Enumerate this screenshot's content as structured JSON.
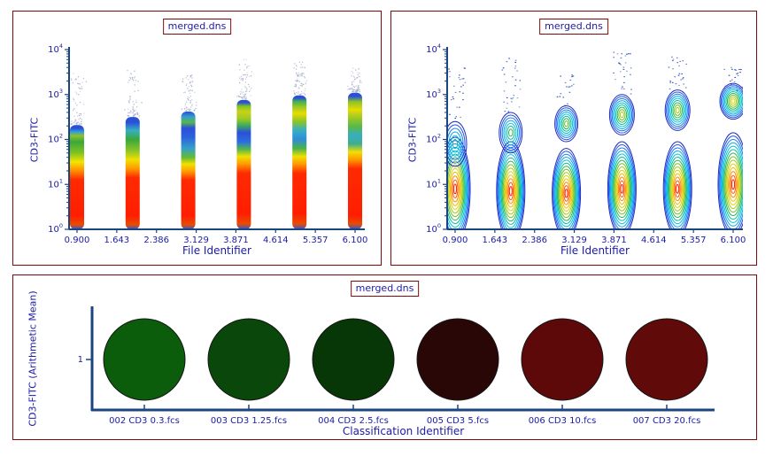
{
  "window": {
    "background": "#ffffff"
  },
  "colors": {
    "panel_border": "#7d0b0b",
    "title_border": "#7d0b0b",
    "text": "#1b1ba6",
    "axis": "#1a4580",
    "speckle": "#9aa2c4",
    "contour_speck": "#1b3fae",
    "bubble_outline": "#151515"
  },
  "chart_data": [
    {
      "id": "density",
      "type": "pseudocolor-density",
      "title": "merged.dns",
      "xlabel": "File Identifier",
      "ylabel": "CD3-FITC",
      "x_scale": "linear",
      "y_scale": "log",
      "xlim": [
        0.9,
        6.1
      ],
      "ylim_log": [
        0,
        4
      ],
      "x_ticks": [
        0.9,
        1.643,
        2.386,
        3.129,
        3.871,
        4.614,
        5.357,
        6.1
      ],
      "x_tick_labels": [
        "0.900",
        "1.643",
        "2.386",
        "3.129",
        "3.871",
        "4.614",
        "5.357",
        "6.100"
      ],
      "y_decades": [
        0,
        1,
        2,
        3,
        4
      ],
      "grid": false,
      "bars": [
        {
          "x": 0.9,
          "width": 16,
          "top_log": 2.32,
          "speck_hi": 3.55,
          "stops": [
            [
              0.0,
              "#2f55e0"
            ],
            [
              0.1,
              "#e84d00"
            ],
            [
              0.3,
              "#ff1e00"
            ],
            [
              1.1,
              "#ff2a00"
            ],
            [
              1.3,
              "#ff8c00"
            ],
            [
              1.5,
              "#f5e400"
            ],
            [
              1.7,
              "#7fc322"
            ],
            [
              1.95,
              "#3aa83a"
            ],
            [
              2.08,
              "#8fc32a"
            ],
            [
              2.17,
              "#2fa0d8"
            ],
            [
              2.25,
              "#2b50d8"
            ],
            [
              2.32,
              "#2b50d8"
            ]
          ]
        },
        {
          "x": 1.94,
          "width": 16,
          "top_log": 2.5,
          "speck_hi": 3.55,
          "stops": [
            [
              0.0,
              "#2f55e0"
            ],
            [
              0.1,
              "#e84d00"
            ],
            [
              0.3,
              "#ff1e00"
            ],
            [
              1.15,
              "#ff2a00"
            ],
            [
              1.35,
              "#ff9800"
            ],
            [
              1.55,
              "#f0e000"
            ],
            [
              1.75,
              "#8cc428"
            ],
            [
              2.0,
              "#3aa83a"
            ],
            [
              2.2,
              "#35b0c0"
            ],
            [
              2.38,
              "#2b50d8"
            ],
            [
              2.5,
              "#2b50d8"
            ]
          ]
        },
        {
          "x": 2.98,
          "width": 16,
          "top_log": 2.62,
          "speck_hi": 3.45,
          "stops": [
            [
              0.0,
              "#2f55e0"
            ],
            [
              0.1,
              "#e84d00"
            ],
            [
              0.3,
              "#ff1e00"
            ],
            [
              1.1,
              "#ff2a00"
            ],
            [
              1.3,
              "#ffa000"
            ],
            [
              1.45,
              "#f0e000"
            ],
            [
              1.6,
              "#63bb35"
            ],
            [
              1.8,
              "#35a0c8"
            ],
            [
              2.05,
              "#2b62dc"
            ],
            [
              2.25,
              "#2b50d8"
            ],
            [
              2.38,
              "#55b84a"
            ],
            [
              2.5,
              "#35a0c8"
            ],
            [
              2.62,
              "#2b50d8"
            ]
          ]
        },
        {
          "x": 4.02,
          "width": 16,
          "top_log": 2.88,
          "speck_hi": 3.8,
          "stops": [
            [
              0.0,
              "#2f55e0"
            ],
            [
              0.12,
              "#e84d00"
            ],
            [
              0.35,
              "#ff1e00"
            ],
            [
              1.25,
              "#ff2a00"
            ],
            [
              1.45,
              "#ff9800"
            ],
            [
              1.62,
              "#f0e000"
            ],
            [
              1.78,
              "#55b84a"
            ],
            [
              1.95,
              "#2b6ce0"
            ],
            [
              2.15,
              "#2b50d8"
            ],
            [
              2.32,
              "#3fae56"
            ],
            [
              2.45,
              "#9cc824"
            ],
            [
              2.62,
              "#c8d416"
            ],
            [
              2.74,
              "#7fc322"
            ],
            [
              2.82,
              "#2b50d8"
            ],
            [
              2.88,
              "#2b50d8"
            ]
          ]
        },
        {
          "x": 5.06,
          "width": 16,
          "top_log": 2.98,
          "speck_hi": 3.75,
          "stops": [
            [
              0.0,
              "#2f55e0"
            ],
            [
              0.12,
              "#e84d00"
            ],
            [
              0.35,
              "#ff1e00"
            ],
            [
              1.25,
              "#ff2a00"
            ],
            [
              1.45,
              "#ff9800"
            ],
            [
              1.62,
              "#f0e000"
            ],
            [
              1.8,
              "#4ab24a"
            ],
            [
              2.0,
              "#2f8cd8"
            ],
            [
              2.2,
              "#35aec6"
            ],
            [
              2.4,
              "#8cc428"
            ],
            [
              2.58,
              "#e8dc00"
            ],
            [
              2.72,
              "#9cc824"
            ],
            [
              2.85,
              "#3fae56"
            ],
            [
              2.92,
              "#2b50d8"
            ],
            [
              2.98,
              "#2b50d8"
            ]
          ]
        },
        {
          "x": 6.1,
          "width": 16,
          "top_log": 3.04,
          "speck_hi": 3.6,
          "stops": [
            [
              0.0,
              "#2f55e0"
            ],
            [
              0.12,
              "#e84d00"
            ],
            [
              0.3,
              "#ff1e00"
            ],
            [
              1.35,
              "#ff2a00"
            ],
            [
              1.55,
              "#ff9800"
            ],
            [
              1.72,
              "#f0e000"
            ],
            [
              1.9,
              "#3fae8c"
            ],
            [
              2.08,
              "#35aec6"
            ],
            [
              2.28,
              "#55b84a"
            ],
            [
              2.48,
              "#9cc824"
            ],
            [
              2.66,
              "#e8dc00"
            ],
            [
              2.84,
              "#8cc428"
            ],
            [
              2.96,
              "#2b50d8"
            ],
            [
              3.04,
              "#2b50d8"
            ]
          ]
        }
      ]
    },
    {
      "id": "contour",
      "type": "contour",
      "title": "merged.dns",
      "xlabel": "File Identifier",
      "ylabel": "CD3-FITC",
      "x_scale": "linear",
      "y_scale": "log",
      "xlim": [
        0.9,
        6.1
      ],
      "ylim_log": [
        0,
        4
      ],
      "x_ticks": [
        0.9,
        1.643,
        2.386,
        3.129,
        3.871,
        4.614,
        5.357,
        6.1
      ],
      "x_tick_labels": [
        "0.900",
        "1.643",
        "2.386",
        "3.129",
        "3.871",
        "4.614",
        "5.357",
        "6.100"
      ],
      "y_decades": [
        0,
        1,
        2,
        3,
        4
      ],
      "grid": false,
      "palette": [
        "#1f2fbf",
        "#2452e8",
        "#1b7cf2",
        "#08a8f0",
        "#00c4d8",
        "#00bfa0",
        "#2eb44e",
        "#6cc22a",
        "#a8cc14",
        "#d8d400",
        "#f2b800",
        "#ff8800",
        "#ff5100",
        "#ff2000"
      ],
      "samples": [
        {
          "x": 0.9,
          "lower": {
            "cy": 0.9,
            "ry": 1.15,
            "rx": 17,
            "depth": 14
          },
          "upper": {
            "cy": 1.9,
            "ry": 0.5,
            "rx": 13,
            "depth": 6
          },
          "specks": {
            "lo": 2.45,
            "hi": 3.7,
            "n": 30
          }
        },
        {
          "x": 1.94,
          "lower": {
            "cy": 0.85,
            "ry": 1.1,
            "rx": 16,
            "depth": 14
          },
          "upper": {
            "cy": 2.15,
            "ry": 0.45,
            "rx": 13,
            "depth": 7
          },
          "specks": {
            "lo": 2.6,
            "hi": 3.85,
            "n": 30
          }
        },
        {
          "x": 2.98,
          "lower": {
            "cy": 0.8,
            "ry": 1.0,
            "rx": 16,
            "depth": 14
          },
          "upper": {
            "cy": 2.35,
            "ry": 0.4,
            "rx": 13,
            "depth": 8
          },
          "specks": {
            "lo": 2.75,
            "hi": 3.45,
            "n": 18
          }
        },
        {
          "x": 4.02,
          "lower": {
            "cy": 0.9,
            "ry": 1.05,
            "rx": 16,
            "depth": 14
          },
          "upper": {
            "cy": 2.55,
            "ry": 0.45,
            "rx": 14,
            "depth": 9
          },
          "specks": {
            "lo": 3.0,
            "hi": 3.95,
            "n": 28
          }
        },
        {
          "x": 5.06,
          "lower": {
            "cy": 0.9,
            "ry": 1.05,
            "rx": 16,
            "depth": 14
          },
          "upper": {
            "cy": 2.65,
            "ry": 0.45,
            "rx": 14,
            "depth": 9
          },
          "specks": {
            "lo": 3.1,
            "hi": 3.85,
            "n": 26
          }
        },
        {
          "x": 6.1,
          "lower": {
            "cy": 1.0,
            "ry": 1.15,
            "rx": 17,
            "depth": 14
          },
          "upper": {
            "cy": 2.85,
            "ry": 0.4,
            "rx": 15,
            "depth": 10
          },
          "specks": {
            "lo": 3.05,
            "hi": 3.65,
            "n": 28
          }
        }
      ]
    },
    {
      "id": "bubble",
      "type": "bubble",
      "title": "merged.dns",
      "xlabel": "Classification Identifier",
      "ylabel": "CD3-FITC (Arithmetic Mean)",
      "y_tick_label": "1",
      "categories": [
        "002 CD3 0.3.fcs",
        "003 CD3 1.25.fcs",
        "004 CD3 2.5.fcs",
        "005 CD3 5.fcs",
        "006 CD3 10.fcs",
        "007 CD3 20.fcs"
      ],
      "values": [
        1,
        1,
        1,
        1,
        1,
        1
      ],
      "bubble_radius": 46,
      "bubble_colors": [
        "#0b5c0b",
        "#0a470a",
        "#073607",
        "#2a0707",
        "#5e0909",
        "#600a0a"
      ]
    }
  ]
}
